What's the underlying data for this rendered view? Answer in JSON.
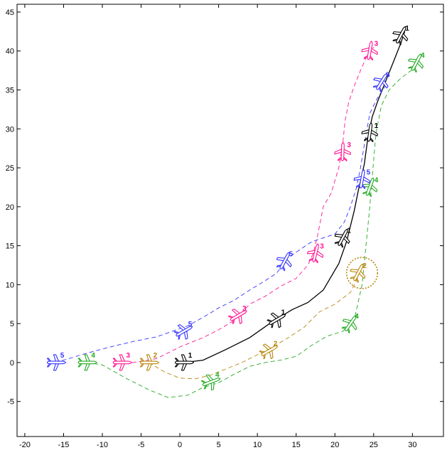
{
  "chart_data": {
    "type": "line",
    "title": "",
    "xlabel": "",
    "ylabel": "",
    "xlim": [
      -21,
      34
    ],
    "ylim": [
      -9.5,
      46
    ],
    "xticks": [
      -20,
      -15,
      -10,
      -5,
      0,
      5,
      10,
      15,
      20,
      25,
      30
    ],
    "yticks": [
      -5,
      0,
      5,
      10,
      15,
      20,
      25,
      30,
      35,
      40,
      45
    ],
    "grid": false,
    "series": [
      {
        "name": "1",
        "color": "#000000",
        "dash": "solid",
        "x": [
          0.5,
          3,
          6,
          9,
          12,
          14.5,
          16.5,
          18.5,
          20.5,
          21.5,
          22.5,
          23,
          23.8,
          24.2,
          24.8,
          25.5,
          26.5,
          27.5,
          28.5,
          29
        ],
        "y": [
          0,
          0.3,
          1.7,
          3.2,
          5.3,
          6.8,
          7.7,
          9.3,
          12.7,
          15.5,
          19.5,
          22,
          25.5,
          28.5,
          31.5,
          33.5,
          36,
          38.5,
          41,
          42.5
        ],
        "aircraft": [
          {
            "x": 0.5,
            "y": 0,
            "heading": 0,
            "label": "1"
          },
          {
            "x": 12.5,
            "y": 5.5,
            "heading": 30,
            "label": "1"
          },
          {
            "x": 21,
            "y": 16,
            "heading": 62,
            "label": "1"
          },
          {
            "x": 24.5,
            "y": 29.5,
            "heading": 82,
            "label": "1"
          },
          {
            "x": 28.5,
            "y": 42,
            "heading": 62,
            "label": "1"
          }
        ]
      },
      {
        "name": "2",
        "color": "#B8860B",
        "dash": "6 4",
        "x": [
          -4,
          -2,
          0,
          2,
          4,
          6,
          8,
          10,
          12,
          14,
          16,
          18,
          20,
          22,
          23
        ],
        "y": [
          0,
          -1.2,
          -2,
          -2.1,
          -1.6,
          -0.8,
          0,
          1,
          2,
          3.2,
          4.5,
          6.5,
          7.5,
          9,
          11
        ],
        "aircraft": [
          {
            "x": -4,
            "y": 0,
            "heading": 0,
            "label": "2"
          },
          {
            "x": 11.5,
            "y": 1.5,
            "heading": 30,
            "label": "2"
          },
          {
            "x": 23,
            "y": 11.5,
            "heading": 62,
            "label": "2"
          }
        ],
        "circle": {
          "x": 23.5,
          "y": 11.5,
          "r": 2
        }
      },
      {
        "name": "3",
        "color": "#FF1493",
        "dash": "6 4",
        "x": [
          -8,
          -6,
          -3,
          0,
          3,
          5,
          7,
          9,
          11,
          13,
          15,
          16.5,
          17.2,
          17.8,
          18.5,
          19.5,
          20.5,
          21,
          21.3,
          21.8,
          22.5,
          23.3,
          24.2,
          25
        ],
        "y": [
          0,
          0,
          0.5,
          2,
          3.2,
          4.2,
          5.4,
          7.5,
          8.5,
          9.8,
          10.8,
          12.5,
          14,
          16.5,
          20,
          21.7,
          25,
          28,
          31,
          33.5,
          35.5,
          37.5,
          39.5,
          40.5
        ],
        "aircraft": [
          {
            "x": -7.5,
            "y": 0,
            "heading": 0,
            "label": "3"
          },
          {
            "x": 7.5,
            "y": 6,
            "heading": 30,
            "label": "3"
          },
          {
            "x": 17.5,
            "y": 14,
            "heading": 76,
            "label": "3"
          },
          {
            "x": 21,
            "y": 27,
            "heading": 88,
            "label": "3"
          },
          {
            "x": 24.5,
            "y": 40,
            "heading": 80,
            "label": "3"
          }
        ]
      },
      {
        "name": "4",
        "color": "#22AA22",
        "dash": "6 4",
        "x": [
          -12,
          -10,
          -7,
          -4,
          -1.5,
          1,
          3,
          5,
          7,
          9,
          11,
          13,
          15,
          17,
          19,
          21,
          22.5,
          23.5,
          24.5,
          25,
          25.3,
          25.6,
          26,
          27,
          28.5,
          30.5
        ],
        "y": [
          0,
          -0.3,
          -2,
          -3.5,
          -4.5,
          -4.2,
          -3.2,
          -2.6,
          -1.5,
          -0.5,
          0,
          0.3,
          0.8,
          2.2,
          3.4,
          4,
          5.5,
          10,
          20,
          26,
          29.5,
          31,
          33,
          35,
          36.5,
          38
        ],
        "aircraft": [
          {
            "x": -12,
            "y": 0,
            "heading": 0,
            "label": "4"
          },
          {
            "x": 4,
            "y": -2.5,
            "heading": 20,
            "label": "4"
          },
          {
            "x": 22,
            "y": 5,
            "heading": 55,
            "label": "4"
          },
          {
            "x": 24.5,
            "y": 22.5,
            "heading": 70,
            "label": "4"
          },
          {
            "x": 30.5,
            "y": 38.5,
            "heading": 62,
            "label": "4"
          }
        ]
      },
      {
        "name": "5",
        "color": "#3333FF",
        "dash": "6 4",
        "x": [
          -17,
          -15,
          -12,
          -9,
          -6,
          -3,
          -1,
          1,
          3,
          5,
          7,
          9,
          11,
          12.5,
          14,
          15.5,
          17,
          18.5,
          20,
          21.2,
          22,
          22.8,
          23.3,
          23.8,
          24.5,
          25.5,
          26.5
        ],
        "y": [
          0,
          0.3,
          1.2,
          2,
          2.7,
          3.3,
          4,
          4.7,
          5.8,
          7,
          8,
          9.3,
          10.5,
          11.5,
          13.5,
          14.5,
          15.5,
          16,
          16.5,
          18,
          20,
          22.5,
          25,
          28,
          32,
          34,
          35.5
        ],
        "aircraft": [
          {
            "x": -16,
            "y": 0,
            "heading": 0,
            "label": "5"
          },
          {
            "x": 0.5,
            "y": 4,
            "heading": 30,
            "label": "5"
          },
          {
            "x": 13.5,
            "y": 13,
            "heading": 62,
            "label": "5"
          },
          {
            "x": 23.5,
            "y": 23.5,
            "heading": 80,
            "label": "5"
          },
          {
            "x": 26,
            "y": 36,
            "heading": 58,
            "label": "5"
          }
        ]
      }
    ]
  }
}
